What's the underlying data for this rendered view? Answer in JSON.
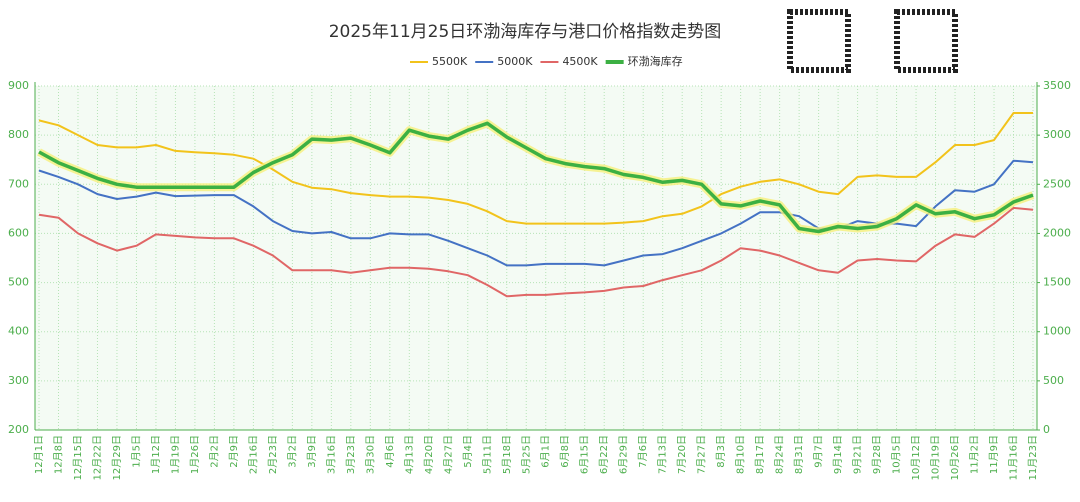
{
  "chart_data": {
    "type": "line",
    "title": "2025年11月25日环渤海库存与港口价格指数走势图",
    "categories": [
      "12月1日",
      "12月8日",
      "12月15日",
      "12月22日",
      "12月29日",
      "1月5日",
      "1月12日",
      "1月19日",
      "1月26日",
      "2月2日",
      "2月9日",
      "2月16日",
      "2月23日",
      "3月2日",
      "3月9日",
      "3月16日",
      "3月23日",
      "3月30日",
      "4月6日",
      "4月13日",
      "4月20日",
      "4月27日",
      "5月4日",
      "5月11日",
      "5月18日",
      "5月25日",
      "6月1日",
      "6月8日",
      "6月15日",
      "6月22日",
      "6月29日",
      "7月6日",
      "7月13日",
      "7月20日",
      "7月27日",
      "8月3日",
      "8月10日",
      "8月17日",
      "8月24日",
      "8月31日",
      "9月7日",
      "9月14日",
      "9月21日",
      "9月28日",
      "10月5日",
      "10月12日",
      "10月19日",
      "10月26日",
      "11月2日",
      "11月9日",
      "11月16日",
      "11月23日"
    ],
    "series": [
      {
        "name": "5500K",
        "color": "#f2c31b",
        "values": [
          830,
          820,
          800,
          780,
          775,
          775,
          780,
          768,
          765,
          763,
          760,
          752,
          730,
          705,
          693,
          690,
          682,
          678,
          675,
          675,
          673,
          668,
          660,
          645,
          625,
          620,
          620,
          620,
          620,
          620,
          622,
          625,
          635,
          640,
          655,
          680,
          695,
          705,
          710,
          700,
          685,
          680,
          715,
          718,
          715,
          715,
          745,
          780,
          780,
          790,
          845,
          845
        ]
      },
      {
        "name": "5000K",
        "color": "#4472c4",
        "values": [
          728,
          715,
          700,
          680,
          670,
          675,
          683,
          676,
          677,
          678,
          678,
          655,
          625,
          605,
          600,
          603,
          590,
          590,
          600,
          598,
          598,
          585,
          570,
          555,
          535,
          535,
          538,
          538,
          538,
          535,
          545,
          555,
          558,
          570,
          585,
          600,
          620,
          643,
          643,
          635,
          610,
          610,
          625,
          620,
          620,
          615,
          655,
          688,
          685,
          700,
          748,
          745
        ]
      },
      {
        "name": "4500K",
        "color": "#e06666",
        "values": [
          638,
          632,
          600,
          580,
          565,
          575,
          598,
          595,
          592,
          590,
          590,
          575,
          555,
          525,
          525,
          525,
          520,
          525,
          530,
          530,
          528,
          523,
          515,
          495,
          472,
          475,
          475,
          478,
          480,
          483,
          490,
          493,
          505,
          515,
          525,
          545,
          570,
          565,
          555,
          540,
          525,
          520,
          545,
          548,
          545,
          543,
          575,
          598,
          593,
          620,
          652,
          648
        ]
      },
      {
        "name": "环渤海库存",
        "color": "#3cb043",
        "axis": "y2",
        "values": [
          2828,
          2720,
          2640,
          2560,
          2500,
          2470,
          2470,
          2470,
          2470,
          2470,
          2470,
          2620,
          2720,
          2800,
          2960,
          2950,
          2970,
          2900,
          2820,
          3050,
          2990,
          2960,
          3050,
          3120,
          2980,
          2870,
          2760,
          2710,
          2680,
          2660,
          2600,
          2570,
          2520,
          2540,
          2500,
          2300,
          2280,
          2330,
          2290,
          2050,
          2020,
          2070,
          2050,
          2070,
          2150,
          2290,
          2200,
          2220,
          2150,
          2190,
          2320,
          2390
        ]
      }
    ],
    "ylim": [
      200,
      900
    ],
    "yticks": [
      200,
      300,
      400,
      500,
      600,
      700,
      800,
      900
    ],
    "y2lim": [
      0,
      3500
    ],
    "y2ticks": [
      0,
      500,
      1000,
      1500,
      2000,
      2500,
      3000,
      3500
    ],
    "grid": true
  }
}
